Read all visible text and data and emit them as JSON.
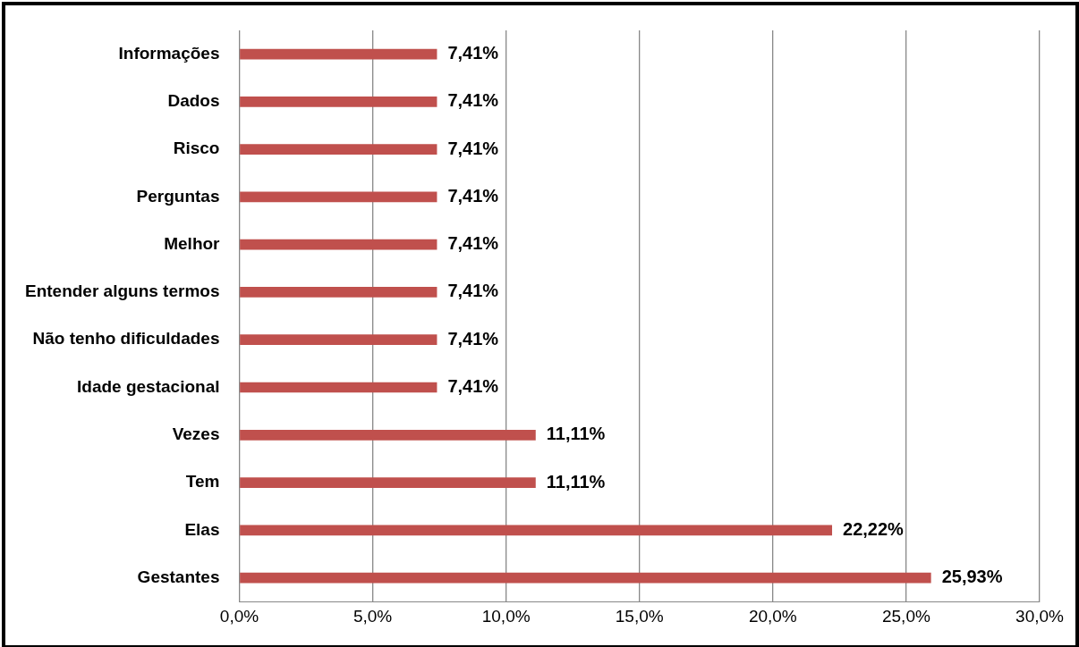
{
  "chart_data": {
    "type": "bar",
    "orientation": "horizontal",
    "categories": [
      "Informações",
      "Dados",
      "Risco",
      "Perguntas",
      "Melhor",
      "Entender alguns termos",
      "Não tenho dificuldades",
      "Idade gestacional",
      "Vezes",
      "Tem",
      "Elas",
      "Gestantes"
    ],
    "values": [
      7.41,
      7.41,
      7.41,
      7.41,
      7.41,
      7.41,
      7.41,
      7.41,
      11.11,
      11.11,
      22.22,
      25.93
    ],
    "value_labels": [
      "7,41%",
      "7,41%",
      "7,41%",
      "7,41%",
      "7,41%",
      "7,41%",
      "7,41%",
      "7,41%",
      "11,11%",
      "11,11%",
      "22,22%",
      "25,93%"
    ],
    "color": "#c0504d",
    "xlim": [
      0,
      30
    ],
    "xticks": [
      {
        "value": 0,
        "label": "0,0%"
      },
      {
        "value": 5,
        "label": "5,0%"
      },
      {
        "value": 10,
        "label": "10,0%"
      },
      {
        "value": 15,
        "label": "15,0%"
      },
      {
        "value": 20,
        "label": "20,0%"
      },
      {
        "value": 25,
        "label": "25,0%"
      },
      {
        "value": 30,
        "label": "30,0%"
      }
    ],
    "grid": "x",
    "legend": false
  }
}
